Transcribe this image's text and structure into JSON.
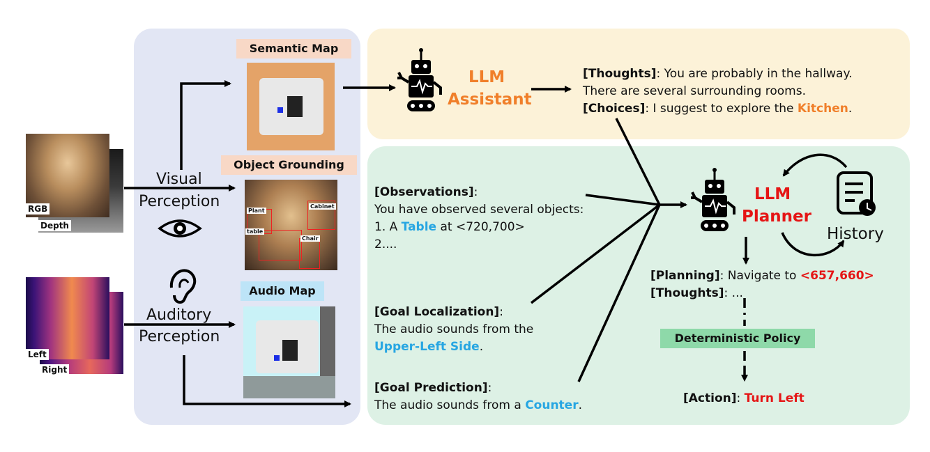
{
  "colors": {
    "perception_panel": "#e2e6f4",
    "assistant_panel": "#fcf2d8",
    "planner_panel": "#ddf1e5",
    "label_peach": "#f8d8c6",
    "label_blue": "#bde4f7",
    "policy_green": "#8ed9a9",
    "orange": "#f07f2a",
    "blue": "#27a6e2",
    "red": "#e51515"
  },
  "inputs": {
    "rgb_label": "RGB",
    "depth_label": "Depth",
    "left_label": "Left",
    "right_label": "Right"
  },
  "perception": {
    "visual_line1": "Visual",
    "visual_line2": "Perception",
    "auditory_line1": "Auditory",
    "auditory_line2": "Perception",
    "semantic_map": "Semantic Map",
    "object_grounding": "Object Grounding",
    "audio_map": "Audio Map",
    "boxes": {
      "plant": "Plant",
      "cabinet": "Cabinet",
      "table": "table",
      "chair": "Chair"
    },
    "eye_icon": "eye-icon",
    "ear_icon": "ear-icon"
  },
  "assistant": {
    "name_line1": "LLM",
    "name_line2": "Assistant",
    "thoughts_key": "[Thoughts]",
    "thoughts_text": ": You are probably in the hallway.",
    "thoughts_text2": "There are several surrounding rooms.",
    "choices_key": "[Choices]",
    "choices_text": ": I suggest to explore the ",
    "choices_highlight": "Kitchen",
    "choices_end": "."
  },
  "planner": {
    "name_line1": "LLM",
    "name_line2": "Planner",
    "history": "History",
    "observations_key": "[Observations]",
    "observations_colon": ":",
    "observations_line1": "You have observed several objects:",
    "observations_line2a": "1. A ",
    "observations_highlight": "Table",
    "observations_line2b": " at <720,700>",
    "observations_line3": "2....",
    "goal_loc_key": "[Goal Localization]",
    "goal_loc_colon": ":",
    "goal_loc_line1": "The audio sounds from the",
    "goal_loc_highlight": "Upper-Left Side",
    "goal_loc_end": ".",
    "goal_pred_key": "[Goal Prediction]",
    "goal_pred_colon": ":",
    "goal_pred_line1": "The audio sounds from a ",
    "goal_pred_highlight": "Counter",
    "goal_pred_end": ".",
    "planning_key": "[Planning]",
    "planning_text": ": Navigate to ",
    "planning_highlight": "<657,660>",
    "thoughts_key": "[Thoughts]",
    "thoughts_text": ": ...",
    "policy": "Deterministic Policy",
    "action_key": "[Action]",
    "action_colon": ": ",
    "action_highlight": "Turn Left"
  }
}
